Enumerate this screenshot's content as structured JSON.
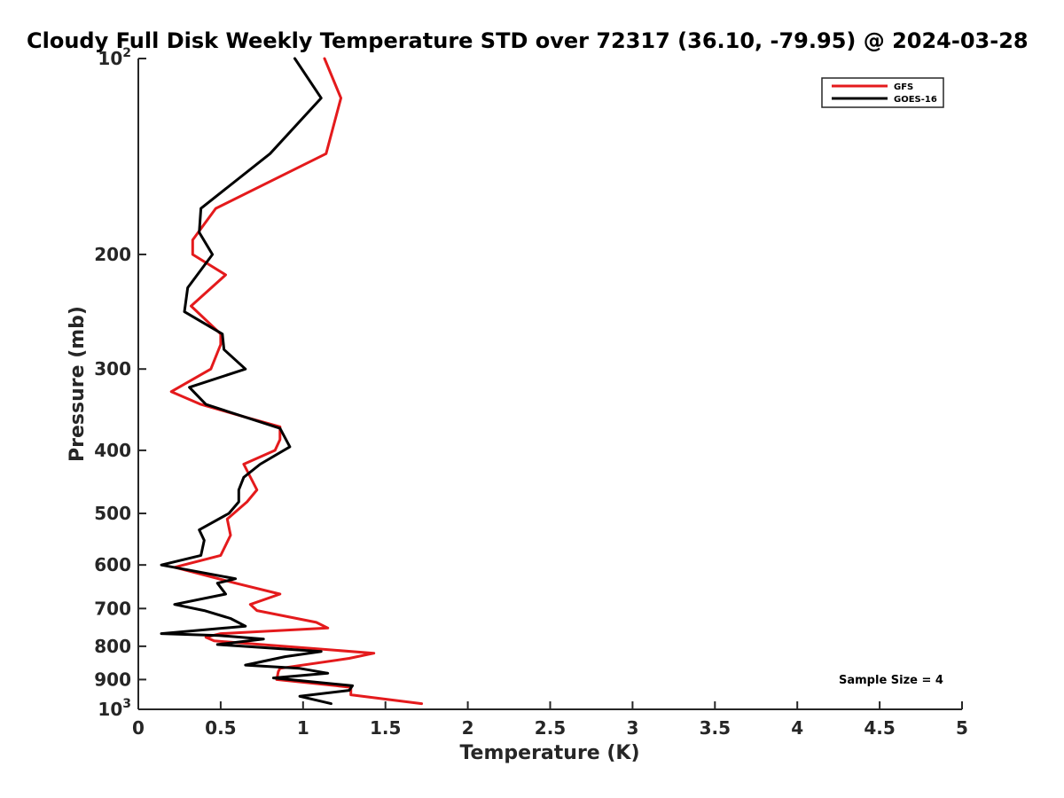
{
  "chart_data": {
    "type": "line",
    "title": "Cloudy Full Disk Weekly Temperature STD over 72317 (36.10, -79.95) @ 2024-03-28",
    "xlabel": "Temperature (K)",
    "ylabel": "Pressure (mb)",
    "xlim": [
      0,
      5
    ],
    "ylim": [
      1000,
      100
    ],
    "y_scale": "log",
    "y_reversed": true,
    "grid": false,
    "legend_position": "top-right",
    "x_ticks": [
      "0",
      "0.5",
      "1",
      "1.5",
      "2",
      "2.5",
      "3",
      "3.5",
      "4",
      "4.5",
      "5"
    ],
    "y_ticks": [
      {
        "value": 100,
        "label": "10",
        "sup": "2"
      },
      {
        "value": 200,
        "label": "200",
        "sup": ""
      },
      {
        "value": 300,
        "label": "300",
        "sup": ""
      },
      {
        "value": 400,
        "label": "400",
        "sup": ""
      },
      {
        "value": 500,
        "label": "500",
        "sup": ""
      },
      {
        "value": 600,
        "label": "600",
        "sup": ""
      },
      {
        "value": 700,
        "label": "700",
        "sup": ""
      },
      {
        "value": 800,
        "label": "800",
        "sup": ""
      },
      {
        "value": 900,
        "label": "900",
        "sup": ""
      },
      {
        "value": 1000,
        "label": "10",
        "sup": "3"
      }
    ],
    "series": [
      {
        "name": "GFS",
        "color": "#e41a1c",
        "points": [
          [
            1.13,
            100
          ],
          [
            1.23,
            115
          ],
          [
            1.14,
            140
          ],
          [
            0.47,
            170
          ],
          [
            0.33,
            190
          ],
          [
            0.33,
            200
          ],
          [
            0.53,
            215
          ],
          [
            0.32,
            240
          ],
          [
            0.5,
            265
          ],
          [
            0.5,
            275
          ],
          [
            0.44,
            300
          ],
          [
            0.2,
            325
          ],
          [
            0.38,
            340
          ],
          [
            0.64,
            355
          ],
          [
            0.86,
            368
          ],
          [
            0.86,
            385
          ],
          [
            0.83,
            400
          ],
          [
            0.64,
            420
          ],
          [
            0.72,
            460
          ],
          [
            0.66,
            480
          ],
          [
            0.54,
            510
          ],
          [
            0.56,
            540
          ],
          [
            0.5,
            580
          ],
          [
            0.22,
            605
          ],
          [
            0.59,
            640
          ],
          [
            0.86,
            665
          ],
          [
            0.68,
            690
          ],
          [
            0.72,
            705
          ],
          [
            1.08,
            735
          ],
          [
            1.15,
            750
          ],
          [
            0.5,
            765
          ],
          [
            0.41,
            775
          ],
          [
            0.46,
            785
          ],
          [
            1.43,
            820
          ],
          [
            1.28,
            835
          ],
          [
            0.86,
            865
          ],
          [
            0.85,
            875
          ],
          [
            0.84,
            900
          ],
          [
            1.29,
            925
          ],
          [
            1.29,
            950
          ],
          [
            1.72,
            980
          ]
        ]
      },
      {
        "name": "GOES-16",
        "color": "#000000",
        "points": [
          [
            0.95,
            100
          ],
          [
            1.11,
            115
          ],
          [
            0.8,
            140
          ],
          [
            0.38,
            170
          ],
          [
            0.37,
            185
          ],
          [
            0.45,
            200
          ],
          [
            0.3,
            225
          ],
          [
            0.28,
            245
          ],
          [
            0.51,
            265
          ],
          [
            0.52,
            280
          ],
          [
            0.65,
            300
          ],
          [
            0.31,
            320
          ],
          [
            0.41,
            340
          ],
          [
            0.86,
            370
          ],
          [
            0.92,
            395
          ],
          [
            0.74,
            420
          ],
          [
            0.64,
            440
          ],
          [
            0.61,
            460
          ],
          [
            0.61,
            480
          ],
          [
            0.55,
            500
          ],
          [
            0.37,
            530
          ],
          [
            0.4,
            550
          ],
          [
            0.38,
            580
          ],
          [
            0.14,
            600
          ],
          [
            0.59,
            630
          ],
          [
            0.48,
            640
          ],
          [
            0.53,
            665
          ],
          [
            0.22,
            690
          ],
          [
            0.4,
            705
          ],
          [
            0.56,
            725
          ],
          [
            0.65,
            745
          ],
          [
            0.14,
            765
          ],
          [
            0.49,
            770
          ],
          [
            0.76,
            780
          ],
          [
            0.48,
            795
          ],
          [
            1.11,
            815
          ],
          [
            0.89,
            830
          ],
          [
            0.65,
            855
          ],
          [
            0.98,
            865
          ],
          [
            1.15,
            880
          ],
          [
            0.82,
            895
          ],
          [
            1.3,
            920
          ],
          [
            1.28,
            935
          ],
          [
            0.98,
            955
          ],
          [
            1.17,
            980
          ]
        ]
      }
    ],
    "annotations": [
      {
        "text": "Sample Size = 4",
        "position": "bottom-right"
      }
    ]
  }
}
